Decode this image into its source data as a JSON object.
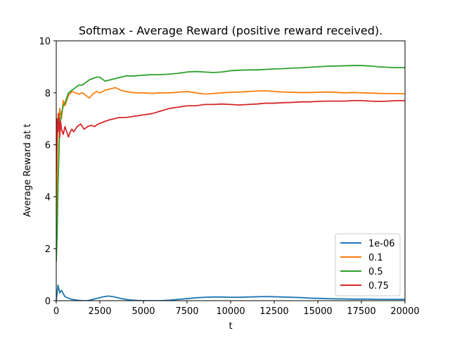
{
  "chart_data": {
    "type": "line",
    "title": "Softmax - Average Reward (positive reward received).",
    "xlabel": "t",
    "ylabel": "Average Reward at t",
    "xlim": [
      0,
      20000
    ],
    "ylim": [
      0,
      10
    ],
    "xticks": [
      0,
      2500,
      5000,
      7500,
      10000,
      12500,
      15000,
      17500,
      20000
    ],
    "yticks": [
      0,
      2,
      4,
      6,
      8,
      10
    ],
    "legend_placement": "lower-right",
    "grid": false,
    "series": [
      {
        "name": "1e-06",
        "color": "#1f77b4",
        "x": [
          0,
          100,
          200,
          300,
          500,
          700,
          900,
          1200,
          1500,
          1800,
          2100,
          2400,
          2700,
          3000,
          3300,
          3600,
          3900,
          4200,
          4600,
          5000,
          5500,
          6000,
          6500,
          7000,
          7500,
          8000,
          8500,
          9000,
          9500,
          10000,
          10500,
          11000,
          11500,
          12000,
          12500,
          13000,
          13500,
          14000,
          14500,
          15000,
          15500,
          16000,
          16500,
          17000,
          17500,
          18000,
          18500,
          19000,
          19500,
          20000
        ],
        "values": [
          0.0,
          0.6,
          0.3,
          0.4,
          0.15,
          0.1,
          0.05,
          0.02,
          0.0,
          0.0,
          0.05,
          0.1,
          0.15,
          0.18,
          0.15,
          0.1,
          0.06,
          0.03,
          0.01,
          0.0,
          0.0,
          0.0,
          0.02,
          0.05,
          0.08,
          0.11,
          0.13,
          0.14,
          0.14,
          0.13,
          0.13,
          0.14,
          0.15,
          0.16,
          0.15,
          0.14,
          0.13,
          0.12,
          0.1,
          0.09,
          0.08,
          0.07,
          0.07,
          0.06,
          0.06,
          0.06,
          0.05,
          0.05,
          0.05,
          0.05
        ]
      },
      {
        "name": "0.1",
        "color": "#ff7f0e",
        "x": [
          0,
          50,
          100,
          150,
          200,
          300,
          400,
          500,
          700,
          900,
          1100,
          1300,
          1500,
          1700,
          1900,
          2100,
          2300,
          2500,
          2800,
          3100,
          3400,
          3700,
          4000,
          4500,
          5000,
          5500,
          6000,
          6500,
          7000,
          7500,
          8000,
          8500,
          9000,
          9500,
          10000,
          10500,
          11000,
          11500,
          12000,
          12500,
          13000,
          13500,
          14000,
          14500,
          15000,
          15500,
          16000,
          16500,
          17000,
          17500,
          18000,
          18500,
          19000,
          19500,
          20000
        ],
        "values": [
          2.0,
          5.0,
          7.2,
          6.8,
          7.4,
          7.0,
          7.7,
          7.5,
          7.9,
          8.05,
          8.0,
          7.95,
          8.0,
          7.9,
          7.8,
          7.95,
          8.05,
          8.0,
          8.1,
          8.15,
          8.2,
          8.1,
          8.05,
          8.0,
          8.0,
          7.98,
          8.0,
          8.0,
          8.02,
          8.05,
          8.0,
          7.95,
          7.97,
          8.0,
          8.02,
          8.03,
          8.05,
          8.07,
          8.08,
          8.05,
          8.03,
          8.02,
          8.01,
          8.01,
          8.02,
          8.03,
          8.02,
          8.0,
          8.01,
          8.0,
          7.99,
          7.98,
          7.97,
          7.97,
          7.96
        ]
      },
      {
        "name": "0.5",
        "color": "#2ca02c",
        "x": [
          0,
          50,
          100,
          150,
          200,
          300,
          400,
          500,
          700,
          900,
          1100,
          1300,
          1500,
          1700,
          1900,
          2100,
          2300,
          2500,
          2800,
          3100,
          3400,
          3700,
          4000,
          4500,
          5000,
          5500,
          6000,
          6500,
          7000,
          7500,
          8000,
          8500,
          9000,
          9500,
          10000,
          10500,
          11000,
          11500,
          12000,
          12500,
          13000,
          13500,
          14000,
          14500,
          15000,
          15500,
          16000,
          16500,
          17000,
          17500,
          18000,
          18500,
          19000,
          19500,
          20000
        ],
        "values": [
          1.5,
          2.5,
          4.5,
          5.5,
          6.8,
          7.2,
          7.5,
          7.6,
          8.0,
          8.1,
          8.2,
          8.3,
          8.3,
          8.4,
          8.5,
          8.55,
          8.6,
          8.6,
          8.45,
          8.5,
          8.55,
          8.6,
          8.65,
          8.65,
          8.68,
          8.7,
          8.7,
          8.72,
          8.75,
          8.8,
          8.82,
          8.8,
          8.78,
          8.8,
          8.85,
          8.87,
          8.88,
          8.88,
          8.9,
          8.92,
          8.93,
          8.95,
          8.96,
          8.98,
          9.0,
          9.02,
          9.03,
          9.04,
          9.05,
          9.05,
          9.03,
          9.0,
          8.98,
          8.97,
          8.97
        ]
      },
      {
        "name": "0.75",
        "color": "#d62728",
        "x": [
          0,
          50,
          100,
          150,
          200,
          250,
          300,
          400,
          500,
          600,
          700,
          800,
          900,
          1000,
          1200,
          1400,
          1600,
          1800,
          2000,
          2200,
          2400,
          2600,
          2800,
          3000,
          3300,
          3600,
          4000,
          4500,
          5000,
          5500,
          6000,
          6500,
          7000,
          7500,
          8000,
          8500,
          9000,
          9500,
          10000,
          10500,
          11000,
          11500,
          12000,
          12500,
          13000,
          13500,
          14000,
          14500,
          15000,
          15500,
          16000,
          16500,
          17000,
          17500,
          18000,
          18500,
          19000,
          19500,
          20000
        ],
        "values": [
          5.0,
          7.0,
          6.5,
          7.2,
          6.3,
          6.9,
          6.6,
          6.4,
          6.7,
          6.5,
          6.3,
          6.5,
          6.6,
          6.5,
          6.7,
          6.8,
          6.6,
          6.7,
          6.75,
          6.7,
          6.8,
          6.85,
          6.9,
          6.95,
          7.0,
          7.05,
          7.05,
          7.1,
          7.15,
          7.2,
          7.3,
          7.4,
          7.45,
          7.5,
          7.5,
          7.55,
          7.55,
          7.57,
          7.55,
          7.53,
          7.55,
          7.57,
          7.6,
          7.6,
          7.62,
          7.63,
          7.65,
          7.65,
          7.67,
          7.68,
          7.68,
          7.68,
          7.7,
          7.7,
          7.68,
          7.67,
          7.68,
          7.7,
          7.7
        ]
      }
    ]
  }
}
